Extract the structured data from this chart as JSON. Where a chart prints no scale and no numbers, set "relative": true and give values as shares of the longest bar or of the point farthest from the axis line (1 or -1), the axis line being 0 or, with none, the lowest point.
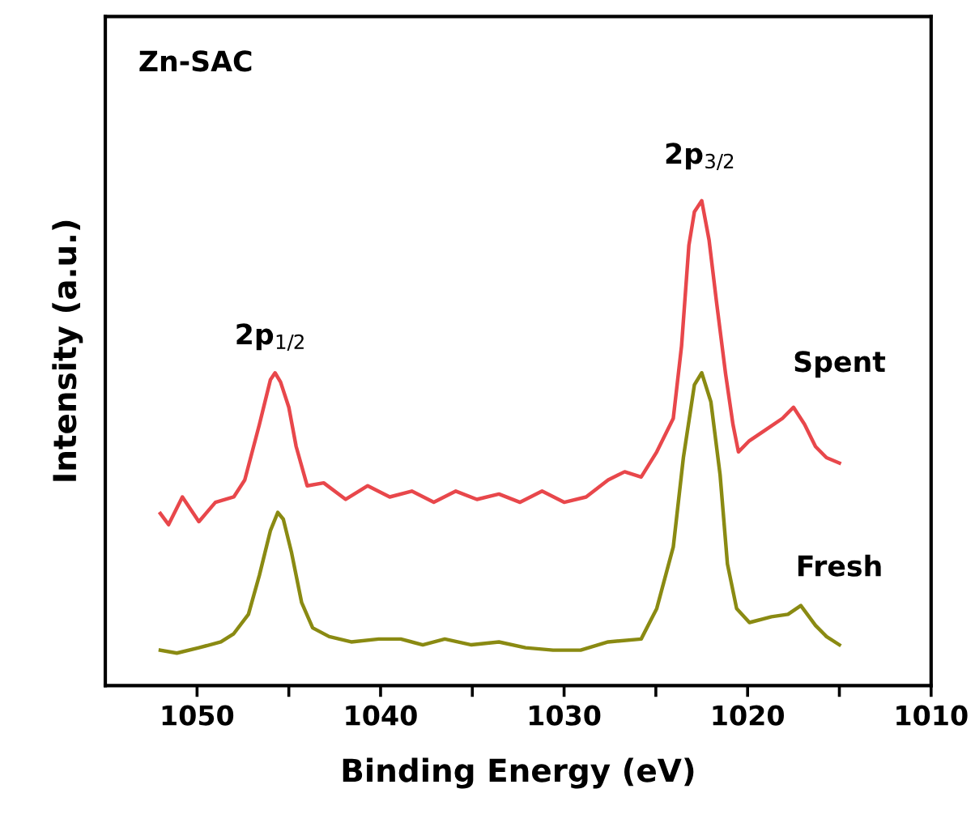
{
  "chart_data": {
    "type": "line",
    "relative": true,
    "xlabel": "Binding Energy (eV)",
    "ylabel": "Intensity (a.u.)",
    "xlim": [
      1055,
      1010
    ],
    "xticks": [
      1050,
      {
        "value": 1045,
        "label": null
      },
      1040,
      {
        "value": 1035,
        "label": null
      },
      1030,
      {
        "value": 1025,
        "label": null
      },
      1020,
      {
        "value": 1015,
        "label": null
      },
      1010
    ],
    "grid": false,
    "legend": false,
    "marker": "none",
    "line_style": "solid",
    "annotations": [
      "Zn-SAC",
      "2p$_{1/2}$",
      "2p$_{3/2}$"
    ],
    "series": [
      {
        "name": "Spent",
        "color": "#e8474b",
        "x": [
          1052.0,
          1051.55,
          1050.8,
          1049.9,
          1049.0,
          1048.0,
          1047.4,
          1046.6,
          1046.0,
          1045.75,
          1045.45,
          1045.0,
          1044.6,
          1044.0,
          1043.1,
          1041.9,
          1040.7,
          1039.5,
          1038.3,
          1037.1,
          1035.9,
          1034.75,
          1033.55,
          1032.4,
          1031.2,
          1030.0,
          1028.8,
          1027.6,
          1026.7,
          1025.8,
          1024.95,
          1024.05,
          1023.6,
          1023.2,
          1022.9,
          1022.5,
          1022.1,
          1021.7,
          1021.2,
          1020.8,
          1020.5,
          1019.9,
          1019.0,
          1018.1,
          1017.5,
          1016.9,
          1016.3,
          1015.7,
          1015.0
        ],
        "values": [
          0.355,
          0.332,
          0.389,
          0.338,
          0.378,
          0.389,
          0.424,
          0.539,
          0.631,
          0.645,
          0.626,
          0.574,
          0.493,
          0.412,
          0.418,
          0.384,
          0.412,
          0.389,
          0.401,
          0.378,
          0.401,
          0.384,
          0.395,
          0.378,
          0.401,
          0.378,
          0.389,
          0.424,
          0.441,
          0.43,
          0.482,
          0.551,
          0.7,
          0.908,
          0.977,
          1.0,
          0.919,
          0.793,
          0.643,
          0.539,
          0.482,
          0.505,
          0.528,
          0.551,
          0.574,
          0.539,
          0.493,
          0.47,
          0.459
        ]
      },
      {
        "name": "Fresh",
        "color": "#8a8a12",
        "x": [
          1052.0,
          1051.1,
          1049.9,
          1048.7,
          1048.0,
          1047.2,
          1046.6,
          1046.0,
          1045.6,
          1045.3,
          1044.85,
          1044.3,
          1043.7,
          1042.8,
          1041.6,
          1040.1,
          1038.9,
          1037.7,
          1036.5,
          1035.05,
          1033.55,
          1032.1,
          1030.6,
          1029.1,
          1027.6,
          1025.8,
          1024.95,
          1024.05,
          1023.5,
          1022.9,
          1022.5,
          1022.0,
          1021.5,
          1021.1,
          1020.6,
          1019.9,
          1018.7,
          1017.8,
          1017.1,
          1016.3,
          1015.7,
          1015.0
        ],
        "values": [
          0.073,
          0.067,
          0.078,
          0.09,
          0.107,
          0.147,
          0.228,
          0.32,
          0.357,
          0.343,
          0.274,
          0.171,
          0.119,
          0.101,
          0.09,
          0.096,
          0.096,
          0.084,
          0.096,
          0.084,
          0.09,
          0.078,
          0.073,
          0.073,
          0.09,
          0.096,
          0.159,
          0.286,
          0.47,
          0.62,
          0.645,
          0.585,
          0.435,
          0.251,
          0.159,
          0.13,
          0.142,
          0.147,
          0.165,
          0.124,
          0.101,
          0.084
        ]
      }
    ]
  }
}
